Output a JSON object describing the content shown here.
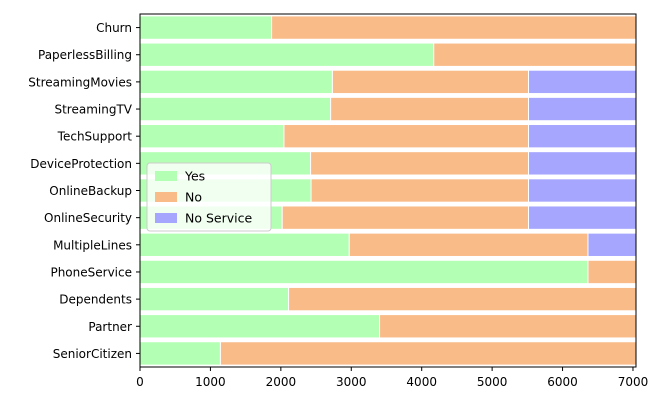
{
  "chart_data": {
    "type": "bar",
    "orientation": "horizontal",
    "stacked": true,
    "categories": [
      "SeniorCitizen",
      "Partner",
      "Dependents",
      "PhoneService",
      "MultipleLines",
      "OnlineSecurity",
      "OnlineBackup",
      "DeviceProtection",
      "TechSupport",
      "StreamingTV",
      "StreamingMovies",
      "PaperlessBilling",
      "Churn"
    ],
    "series": [
      {
        "name": "Yes",
        "color": "#b3ffb3",
        "values": [
          1142,
          3402,
          2110,
          6361,
          2971,
          2019,
          2429,
          2422,
          2044,
          2707,
          2732,
          4171,
          1869
        ]
      },
      {
        "name": "No",
        "color": "#f9bb88",
        "values": [
          5901,
          3641,
          4933,
          682,
          3390,
          3498,
          3088,
          3095,
          3473,
          2810,
          2785,
          2872,
          5174
        ]
      },
      {
        "name": "No Service",
        "color": "#a6a6ff",
        "values": [
          0,
          0,
          0,
          0,
          682,
          1526,
          1526,
          1526,
          1526,
          1526,
          1526,
          0,
          0
        ]
      }
    ],
    "xlim": [
      0,
      7043
    ],
    "xticks": [
      0,
      1000,
      2000,
      3000,
      4000,
      5000,
      6000,
      7000
    ],
    "title": "",
    "xlabel": "",
    "ylabel": "",
    "grid": false,
    "legend_position": "center-left"
  }
}
